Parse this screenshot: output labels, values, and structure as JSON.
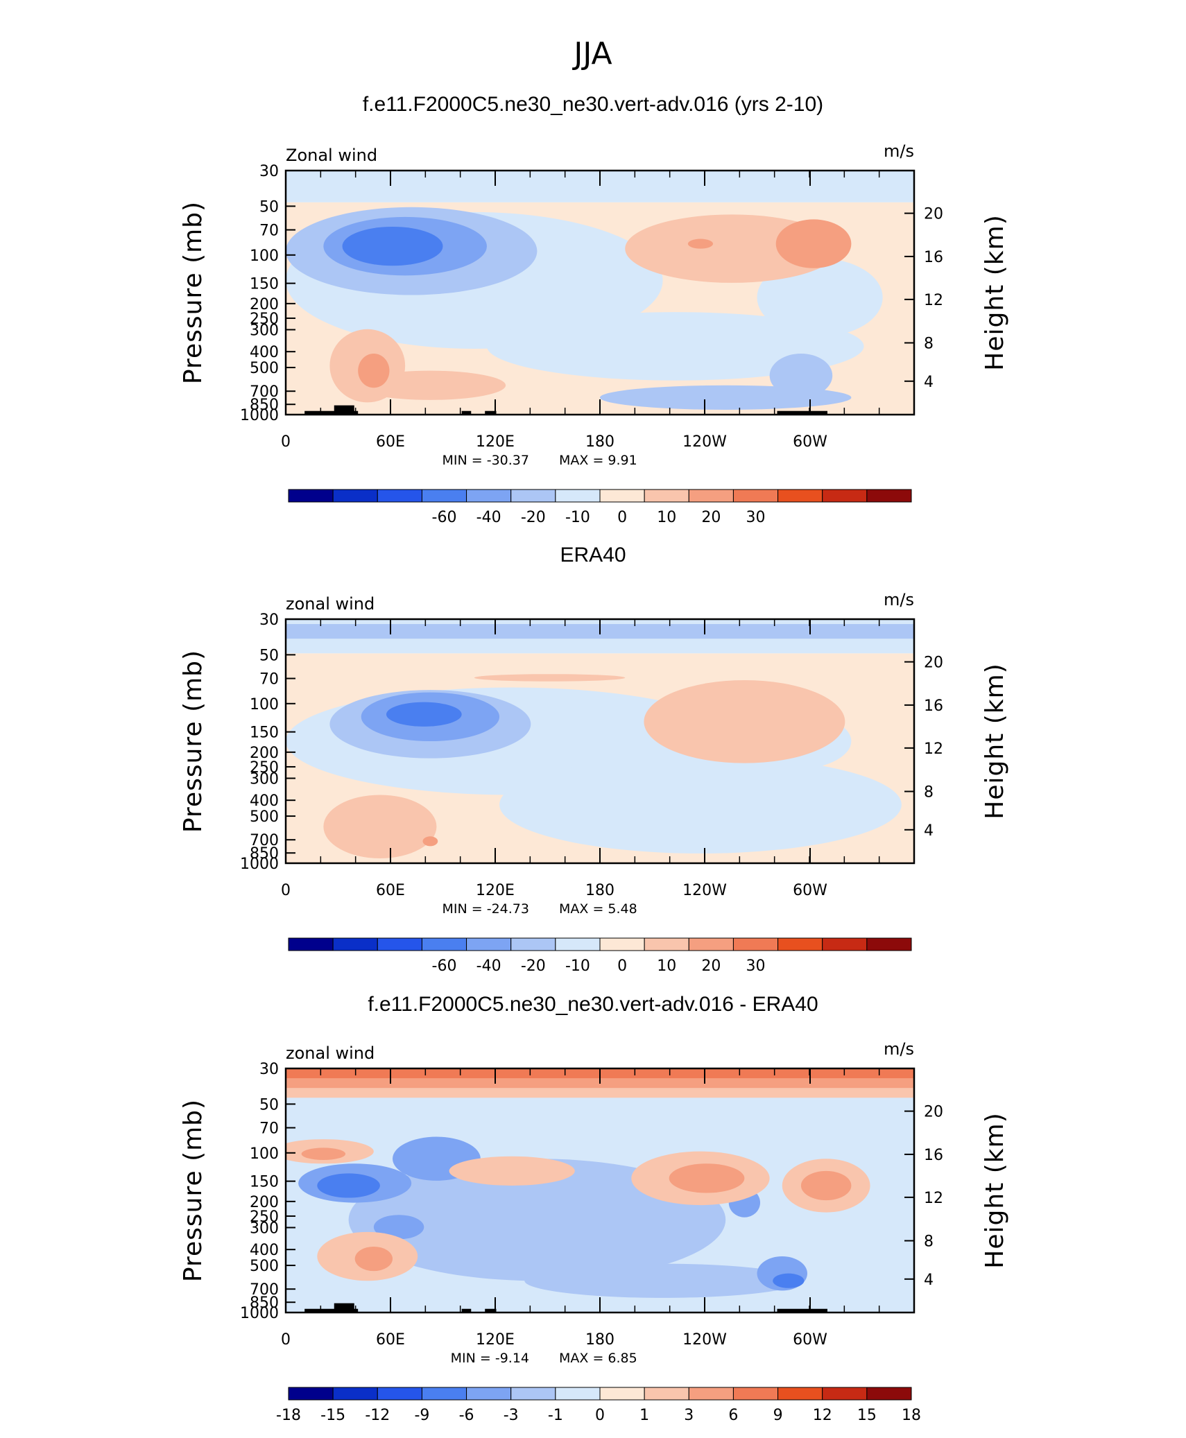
{
  "figure_title": "JJA",
  "chart_data": [
    {
      "type": "heatmap",
      "title": "f.e11.F2000C5.ne30_ne30.vert-adv.016 (yrs 2-10)",
      "left_label": "Zonal wind",
      "units": "m/s",
      "ylabel": "Pressure (mb)",
      "ylabel_right": "Height (km)",
      "x_ticks": [
        "0",
        "60E",
        "120E",
        "180",
        "120W",
        "60W"
      ],
      "y_ticks": [
        "30",
        "50",
        "70",
        "100",
        "150",
        "200",
        "250",
        "300",
        "400",
        "500",
        "700",
        "850",
        "1000"
      ],
      "y_ticks_right": [
        "20",
        "16",
        "12",
        "8",
        "4"
      ],
      "min_label": "MIN = -30.37",
      "max_label": "MAX = 9.91",
      "min": -30.37,
      "max": 9.91,
      "colorbar_labels": [
        "-60",
        "-40",
        "-20",
        "-10",
        "0",
        "10",
        "20",
        "30"
      ],
      "colors": [
        "#00008c",
        "#0a2fc8",
        "#2555ea",
        "#4a7ff0",
        "#7da4f3",
        "#acc6f5",
        "#d6e8fa",
        "#fde8d6",
        "#f9c5ad",
        "#f59f80",
        "#f07a55",
        "#e8501f",
        "#c72a14",
        "#8c0a0a"
      ],
      "topography": true
    },
    {
      "type": "heatmap",
      "title": "ERA40",
      "left_label": "zonal wind",
      "units": "m/s",
      "ylabel": "Pressure (mb)",
      "ylabel_right": "Height (km)",
      "x_ticks": [
        "0",
        "60E",
        "120E",
        "180",
        "120W",
        "60W"
      ],
      "y_ticks": [
        "30",
        "50",
        "70",
        "100",
        "150",
        "200",
        "250",
        "300",
        "400",
        "500",
        "700",
        "850",
        "1000"
      ],
      "y_ticks_right": [
        "20",
        "16",
        "12",
        "8",
        "4"
      ],
      "min_label": "MIN = -24.73",
      "max_label": "MAX = 5.48",
      "min": -24.73,
      "max": 5.48,
      "colorbar_labels": [
        "-60",
        "-40",
        "-20",
        "-10",
        "0",
        "10",
        "20",
        "30"
      ],
      "colors": [
        "#00008c",
        "#0a2fc8",
        "#2555ea",
        "#4a7ff0",
        "#7da4f3",
        "#acc6f5",
        "#d6e8fa",
        "#fde8d6",
        "#f9c5ad",
        "#f59f80",
        "#f07a55",
        "#e8501f",
        "#c72a14",
        "#8c0a0a"
      ],
      "topography": false
    },
    {
      "type": "heatmap",
      "title": "f.e11.F2000C5.ne30_ne30.vert-adv.016 - ERA40",
      "left_label": "zonal wind",
      "units": "m/s",
      "ylabel": "Pressure (mb)",
      "ylabel_right": "Height (km)",
      "x_ticks": [
        "0",
        "60E",
        "120E",
        "180",
        "120W",
        "60W"
      ],
      "y_ticks": [
        "30",
        "50",
        "70",
        "100",
        "150",
        "200",
        "250",
        "300",
        "400",
        "500",
        "700",
        "850",
        "1000"
      ],
      "y_ticks_right": [
        "20",
        "16",
        "12",
        "8",
        "4"
      ],
      "min_label": "MIN = -9.14",
      "max_label": "MAX = 6.85",
      "min": -9.14,
      "max": 6.85,
      "colorbar_labels": [
        "-18",
        "-15",
        "-12",
        "-9",
        "-6",
        "-3",
        "-1",
        "0",
        "1",
        "3",
        "6",
        "9",
        "12",
        "15",
        "18"
      ],
      "colors": [
        "#00008c",
        "#0a2fc8",
        "#2555ea",
        "#4a7ff0",
        "#7da4f3",
        "#acc6f5",
        "#d6e8fa",
        "#fde8d6",
        "#f9c5ad",
        "#f59f80",
        "#f07a55",
        "#e8501f",
        "#c72a14",
        "#8c0a0a"
      ],
      "topography": true
    }
  ]
}
